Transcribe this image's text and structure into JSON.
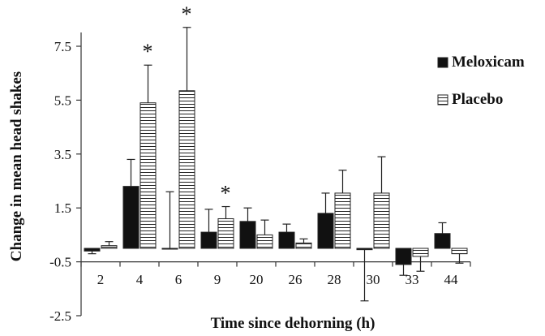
{
  "chart_data": {
    "type": "bar",
    "xlabel": "Time since dehorning (h)",
    "ylabel": "Change in mean head shakes",
    "ylim": [
      -2.5,
      8.5
    ],
    "yticks": [
      "7.5",
      "5.5",
      "3.5",
      "1.5",
      "-0.5",
      "-2.5"
    ],
    "ytick_values": [
      7.5,
      5.5,
      3.5,
      1.5,
      -0.5,
      -2.5
    ],
    "categories": [
      "2",
      "4",
      "6",
      "9",
      "20",
      "26",
      "28",
      "30",
      "33",
      "44"
    ],
    "legend_position": "right",
    "series": [
      {
        "name": "Meloxicam",
        "fill": "#111111",
        "pattern": "solid",
        "values": [
          -0.1,
          2.3,
          0.0,
          0.6,
          1.0,
          0.6,
          1.3,
          -0.05,
          -0.6,
          0.55
        ],
        "error": [
          0.1,
          1.0,
          2.1,
          0.85,
          0.5,
          0.3,
          0.75,
          1.9,
          0.4,
          0.4
        ]
      },
      {
        "name": "Placebo",
        "fill": "#ffffff",
        "pattern": "horizontal-lines",
        "values": [
          0.1,
          5.4,
          5.85,
          1.1,
          0.5,
          0.2,
          2.05,
          2.05,
          -0.3,
          -0.2
        ],
        "error": [
          0.15,
          1.4,
          2.35,
          0.45,
          0.55,
          0.15,
          0.85,
          1.35,
          0.55,
          0.35
        ]
      }
    ],
    "annotations": [
      {
        "text": "*",
        "category": "4"
      },
      {
        "text": "*",
        "category": "6"
      },
      {
        "text": "*",
        "category": "9"
      }
    ]
  }
}
